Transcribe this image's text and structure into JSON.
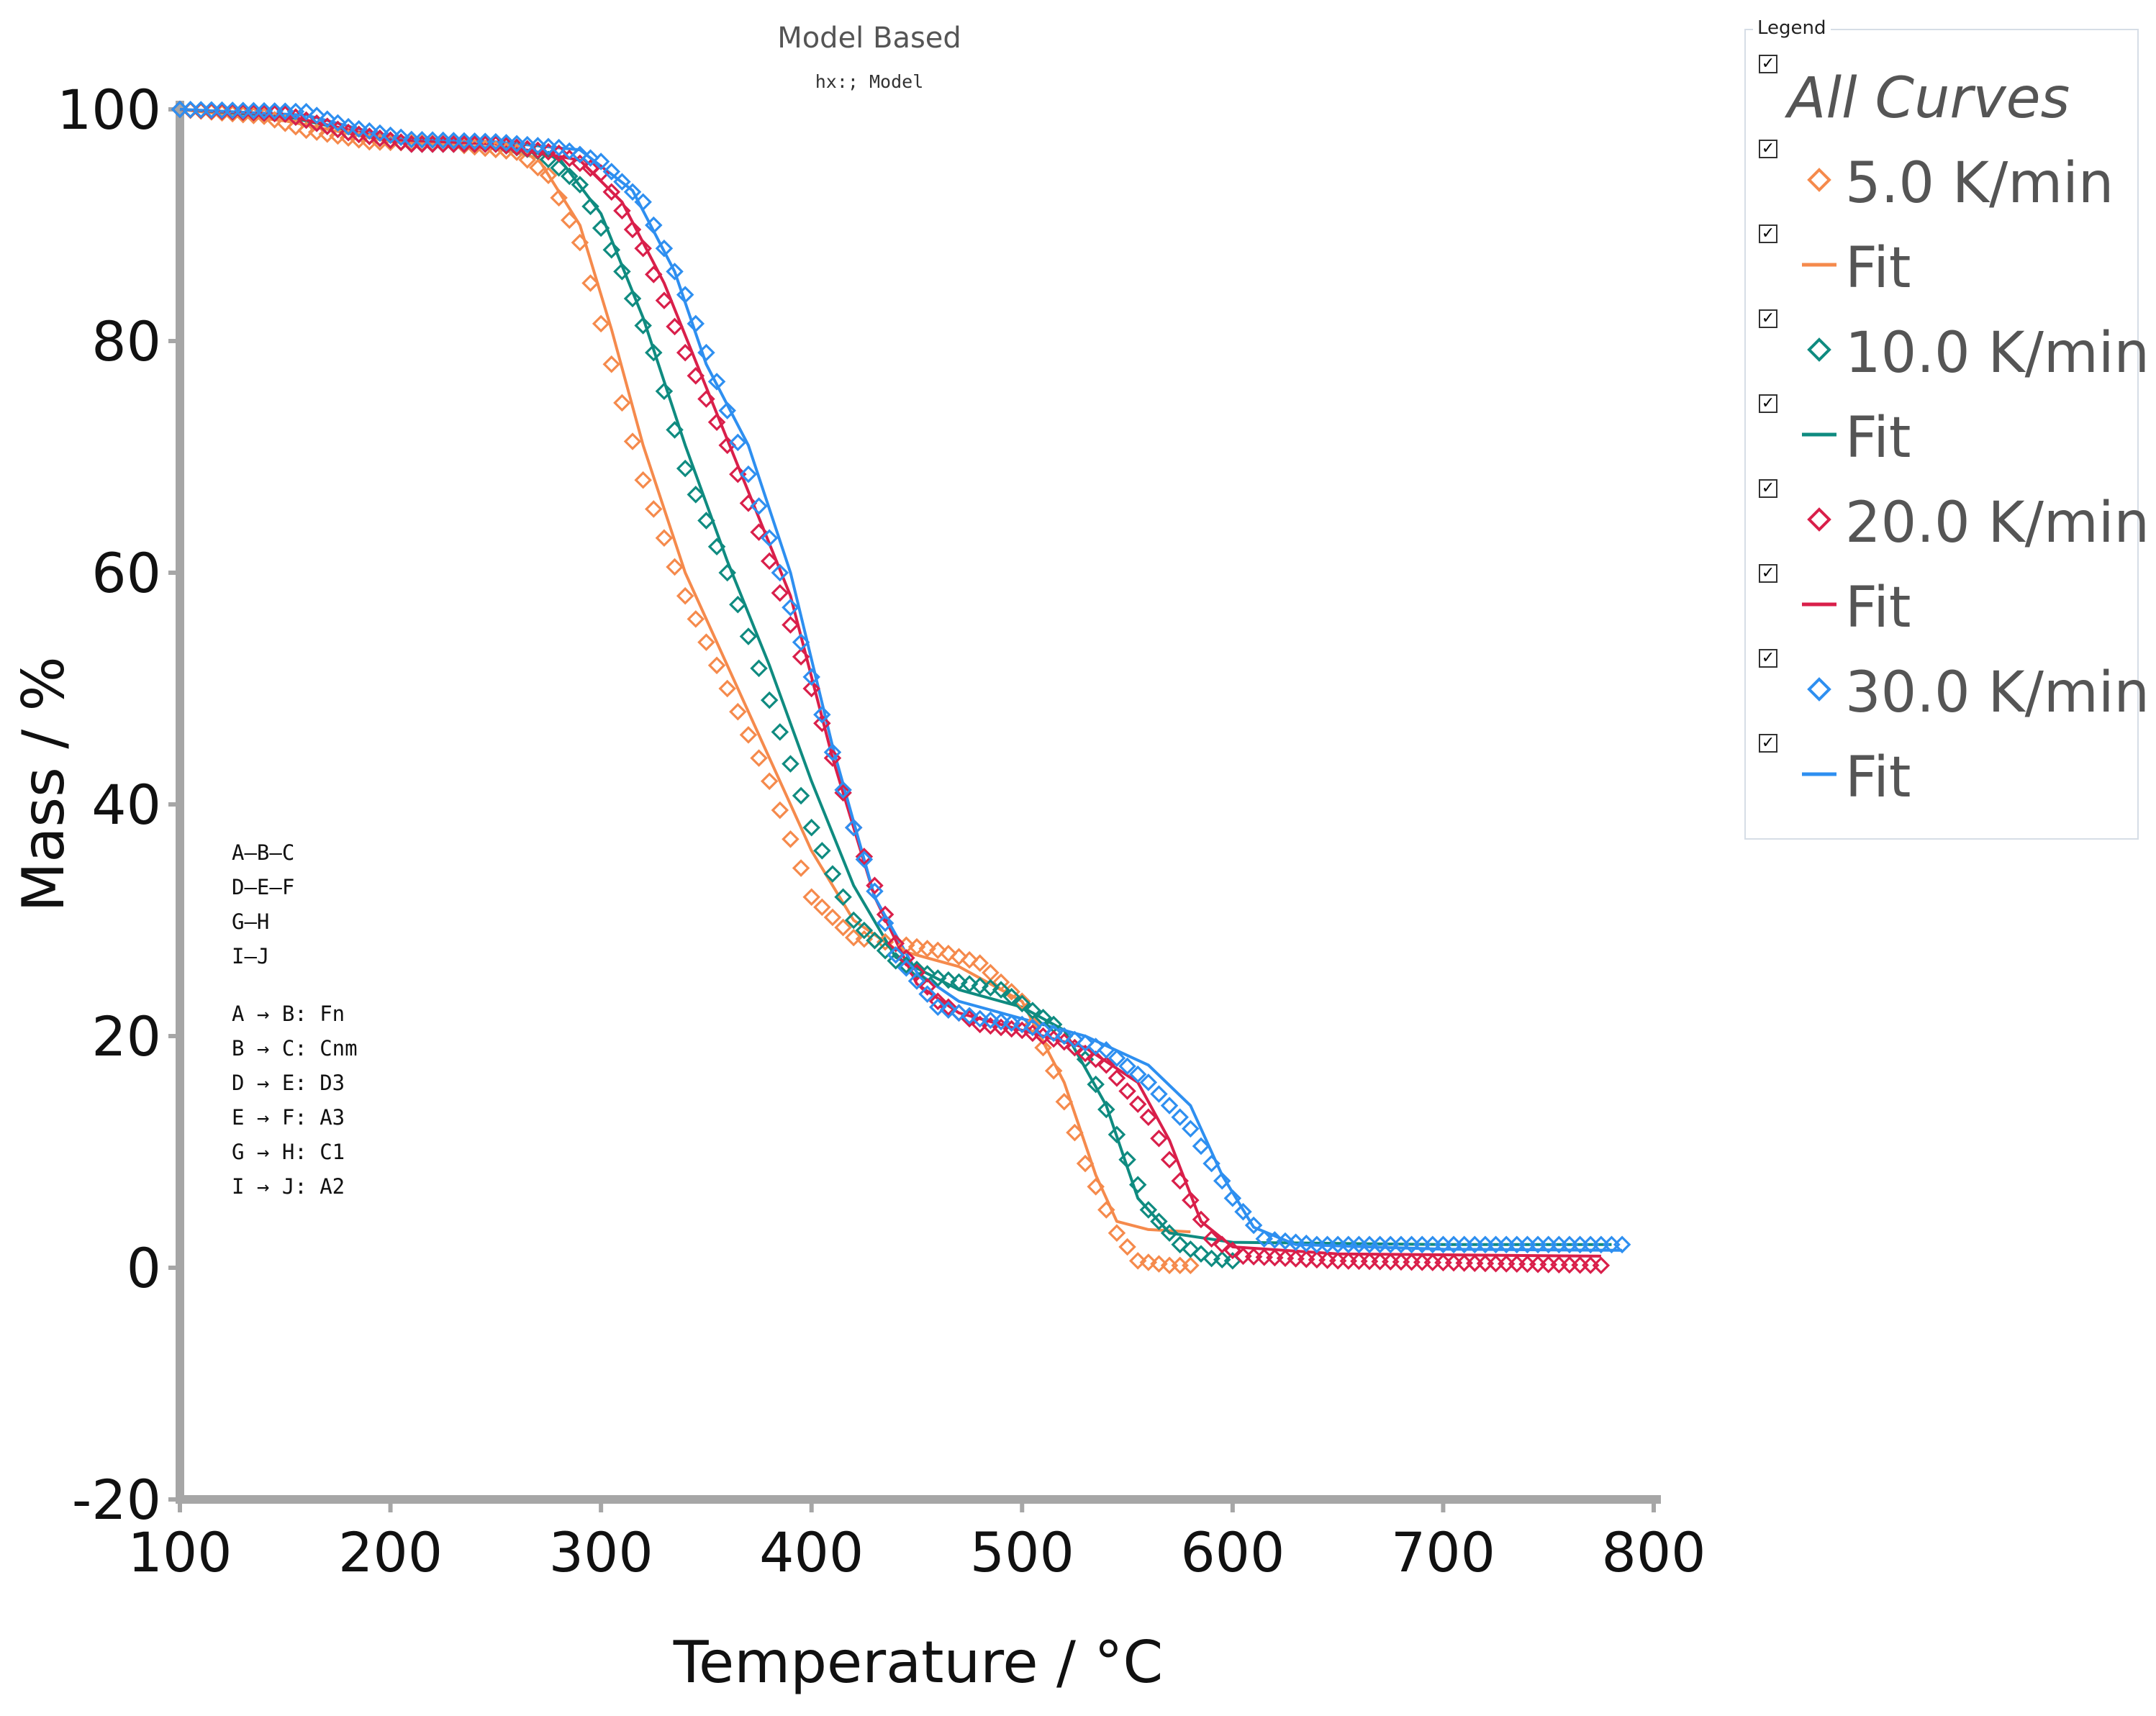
{
  "chart_data": {
    "type": "line",
    "title": "Model Based",
    "subtitle": "hx:; Model",
    "xlabel": "Temperature / °C",
    "ylabel": "Mass / %",
    "xlim": [
      100,
      800
    ],
    "ylim": [
      -20,
      100
    ],
    "xticks": [
      "100",
      "200",
      "300",
      "400",
      "500",
      "600",
      "700",
      "800"
    ],
    "yticks": [
      "100",
      "80",
      "60",
      "40",
      "20",
      "0",
      "-20"
    ],
    "series": [
      {
        "name": "5.0 K/min",
        "color": "#f58a4c",
        "end": 580,
        "points": [
          [
            100,
            100
          ],
          [
            140,
            99.4
          ],
          [
            160,
            98.2
          ],
          [
            190,
            97.2
          ],
          [
            230,
            97.0
          ],
          [
            260,
            96.3
          ],
          [
            275,
            94.3
          ],
          [
            290,
            88.5
          ],
          [
            305,
            78
          ],
          [
            320,
            68
          ],
          [
            340,
            58
          ],
          [
            360,
            50
          ],
          [
            380,
            42
          ],
          [
            400,
            32
          ],
          [
            420,
            28.5
          ],
          [
            440,
            28
          ],
          [
            460,
            27.4
          ],
          [
            480,
            26.3
          ],
          [
            500,
            23
          ],
          [
            515,
            17
          ],
          [
            530,
            9
          ],
          [
            545,
            3
          ],
          [
            555,
            0.6
          ],
          [
            570,
            0.2
          ],
          [
            580,
            0.2
          ]
        ]
      },
      {
        "name": "10.0 K/min",
        "color": "#0f8b80",
        "end": 600,
        "points": [
          [
            100,
            100
          ],
          [
            150,
            99.6
          ],
          [
            180,
            98
          ],
          [
            210,
            97
          ],
          [
            250,
            97
          ],
          [
            270,
            96.4
          ],
          [
            290,
            93.5
          ],
          [
            310,
            86
          ],
          [
            325,
            79
          ],
          [
            340,
            69
          ],
          [
            360,
            60
          ],
          [
            380,
            49
          ],
          [
            400,
            38
          ],
          [
            420,
            30
          ],
          [
            440,
            26.5
          ],
          [
            460,
            25
          ],
          [
            490,
            24
          ],
          [
            515,
            21
          ],
          [
            530,
            18
          ],
          [
            545,
            11.5
          ],
          [
            560,
            5
          ],
          [
            575,
            2
          ],
          [
            590,
            0.8
          ],
          [
            600,
            0.6
          ]
        ]
      },
      {
        "name": "20.0 K/min",
        "color": "#d91f4a",
        "end": 775,
        "points": [
          [
            100,
            100
          ],
          [
            150,
            99.6
          ],
          [
            180,
            98
          ],
          [
            210,
            97
          ],
          [
            250,
            97
          ],
          [
            280,
            96.2
          ],
          [
            300,
            94.5
          ],
          [
            320,
            88
          ],
          [
            340,
            79
          ],
          [
            360,
            71
          ],
          [
            380,
            61
          ],
          [
            400,
            50
          ],
          [
            420,
            38
          ],
          [
            440,
            28
          ],
          [
            460,
            23
          ],
          [
            480,
            21
          ],
          [
            500,
            20.5
          ],
          [
            520,
            19.5
          ],
          [
            540,
            17.5
          ],
          [
            560,
            13
          ],
          [
            575,
            7.5
          ],
          [
            590,
            2.5
          ],
          [
            605,
            1
          ],
          [
            650,
            0.6
          ],
          [
            775,
            0.2
          ]
        ]
      },
      {
        "name": "30.0 K/min",
        "color": "#2e8ff0",
        "end": 785,
        "points": [
          [
            100,
            100
          ],
          [
            160,
            99.8
          ],
          [
            180,
            98.5
          ],
          [
            210,
            97.4
          ],
          [
            250,
            97.2
          ],
          [
            280,
            96.7
          ],
          [
            300,
            95.5
          ],
          [
            320,
            92
          ],
          [
            340,
            84
          ],
          [
            360,
            74
          ],
          [
            380,
            63
          ],
          [
            400,
            51
          ],
          [
            420,
            38
          ],
          [
            440,
            27
          ],
          [
            460,
            22.5
          ],
          [
            480,
            21.5
          ],
          [
            500,
            21
          ],
          [
            520,
            20
          ],
          [
            540,
            18.8
          ],
          [
            560,
            16
          ],
          [
            580,
            12
          ],
          [
            600,
            6
          ],
          [
            615,
            2.5
          ],
          [
            640,
            2
          ],
          [
            785,
            2
          ]
        ]
      }
    ],
    "fits": [
      {
        "name": "Fit",
        "color": "#f58a4c",
        "end": 580,
        "points": [
          [
            100,
            100
          ],
          [
            150,
            99
          ],
          [
            200,
            97.2
          ],
          [
            250,
            96.7
          ],
          [
            270,
            95.8
          ],
          [
            290,
            90
          ],
          [
            305,
            81
          ],
          [
            320,
            71
          ],
          [
            340,
            60
          ],
          [
            360,
            52
          ],
          [
            380,
            44
          ],
          [
            400,
            36
          ],
          [
            420,
            30
          ],
          [
            440,
            27.5
          ],
          [
            470,
            26
          ],
          [
            500,
            23
          ],
          [
            520,
            16
          ],
          [
            535,
            8
          ],
          [
            545,
            4
          ],
          [
            560,
            3.3
          ],
          [
            580,
            3.1
          ]
        ]
      },
      {
        "name": "Fit",
        "color": "#0f8b80",
        "end": 780,
        "points": [
          [
            100,
            100
          ],
          [
            150,
            99.4
          ],
          [
            200,
            97.4
          ],
          [
            250,
            97
          ],
          [
            280,
            95.8
          ],
          [
            300,
            91
          ],
          [
            320,
            82
          ],
          [
            340,
            71
          ],
          [
            360,
            61
          ],
          [
            380,
            52
          ],
          [
            400,
            42
          ],
          [
            420,
            33
          ],
          [
            440,
            26.8
          ],
          [
            470,
            24
          ],
          [
            500,
            22.5
          ],
          [
            520,
            20.5
          ],
          [
            540,
            14
          ],
          [
            555,
            6
          ],
          [
            570,
            3
          ],
          [
            600,
            2.2
          ],
          [
            700,
            2
          ],
          [
            780,
            2
          ]
        ]
      },
      {
        "name": "Fit",
        "color": "#d91f4a",
        "end": 775,
        "points": [
          [
            100,
            100
          ],
          [
            150,
            99.5
          ],
          [
            200,
            97.4
          ],
          [
            250,
            97
          ],
          [
            290,
            95.6
          ],
          [
            310,
            92
          ],
          [
            330,
            85
          ],
          [
            350,
            76
          ],
          [
            370,
            67
          ],
          [
            390,
            58
          ],
          [
            410,
            44
          ],
          [
            430,
            32
          ],
          [
            450,
            24.5
          ],
          [
            470,
            22
          ],
          [
            500,
            20.5
          ],
          [
            530,
            19
          ],
          [
            555,
            16
          ],
          [
            570,
            11
          ],
          [
            585,
            4
          ],
          [
            600,
            1.8
          ],
          [
            650,
            1.2
          ],
          [
            775,
            1
          ]
        ]
      },
      {
        "name": "Fit",
        "color": "#2e8ff0",
        "end": 785,
        "points": [
          [
            100,
            100
          ],
          [
            160,
            99.5
          ],
          [
            200,
            97.6
          ],
          [
            250,
            97.2
          ],
          [
            290,
            96.5
          ],
          [
            315,
            93
          ],
          [
            335,
            86
          ],
          [
            350,
            78
          ],
          [
            370,
            71
          ],
          [
            390,
            60
          ],
          [
            410,
            45
          ],
          [
            430,
            32
          ],
          [
            450,
            25.5
          ],
          [
            470,
            23
          ],
          [
            500,
            21.5
          ],
          [
            530,
            20
          ],
          [
            560,
            17.5
          ],
          [
            580,
            14
          ],
          [
            595,
            8
          ],
          [
            610,
            3.5
          ],
          [
            630,
            2
          ],
          [
            700,
            1.6
          ],
          [
            785,
            1.5
          ]
        ]
      }
    ],
    "annotation_lines": [
      "A—B—C",
      "D—E—F",
      "G—H",
      "I—J",
      "A → B: Fn",
      "B → C: Cnm",
      "D → E: D3",
      "E → F: A3",
      "G → H: C1",
      "I → J: A2"
    ],
    "grid": false,
    "legend_placement": "right"
  },
  "legend": {
    "caption": "Legend",
    "check_glyph": "✓",
    "entries": [
      {
        "label": "All Curves",
        "kind": "none",
        "color": "#555555"
      },
      {
        "label": "5.0 K/min",
        "kind": "diamond",
        "color": "#f58a4c"
      },
      {
        "label": "Fit",
        "kind": "line",
        "color": "#f58a4c"
      },
      {
        "label": "10.0 K/min",
        "kind": "diamond",
        "color": "#0f8b80"
      },
      {
        "label": "Fit",
        "kind": "line",
        "color": "#0f8b80"
      },
      {
        "label": "20.0 K/min",
        "kind": "diamond",
        "color": "#d91f4a"
      },
      {
        "label": "Fit",
        "kind": "line",
        "color": "#d91f4a"
      },
      {
        "label": "30.0 K/min",
        "kind": "diamond",
        "color": "#2e8ff0"
      },
      {
        "label": "Fit",
        "kind": "line",
        "color": "#2e8ff0"
      }
    ]
  },
  "colors": {
    "axis": "#a6a6a6",
    "text": "#111111",
    "title": "#555555"
  }
}
